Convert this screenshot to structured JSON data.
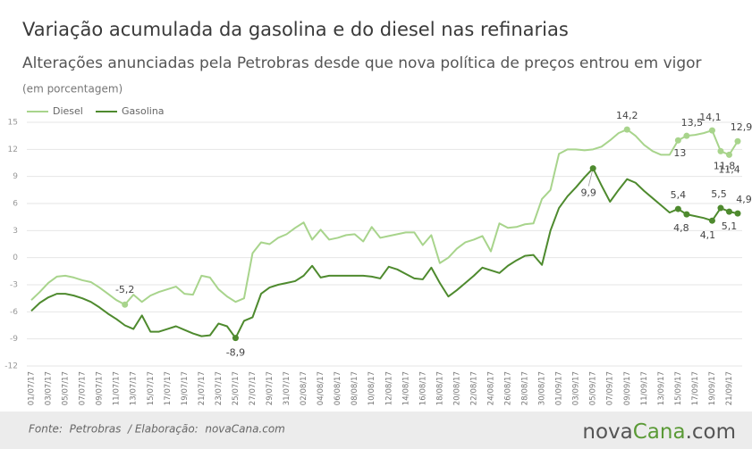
{
  "chart_data": {
    "type": "line",
    "title": "Variação acumulada da gasolina e do diesel nas refinarias",
    "subtitle": "Alterações anunciadas pela Petrobras desde que nova política de preços entrou em vigor",
    "unit_note": "(em porcentagem)",
    "categories": [
      "01/07/17",
      null,
      "03/07/17",
      null,
      "05/07/17",
      null,
      "07/07/17",
      null,
      "09/07/17",
      null,
      "11/07/17",
      null,
      "13/07/17",
      null,
      "15/07/17",
      null,
      "17/07/17",
      null,
      "19/07/17",
      null,
      "21/07/17",
      null,
      "23/07/17",
      null,
      "25/07/17",
      null,
      "27/07/17",
      null,
      "29/07/17",
      null,
      "31/07/17",
      null,
      "02/08/17",
      null,
      "04/08/17",
      null,
      "06/08/17",
      null,
      "08/08/17",
      null,
      "10/08/17",
      null,
      "12/08/17",
      null,
      "14/08/17",
      null,
      "16/08/17",
      null,
      "18/08/17",
      null,
      "20/08/17",
      null,
      "22/08/17",
      null,
      "24/08/17",
      null,
      "26/08/17",
      null,
      "28/08/17",
      null,
      "30/08/17",
      null,
      "01/09/17",
      null,
      "03/09/17",
      null,
      "05/09/17",
      null,
      "07/09/17",
      null,
      "09/09/17",
      null,
      "11/09/17",
      null,
      "13/09/17",
      null,
      "15/09/17",
      null,
      "17/09/17",
      null,
      "19/09/17",
      null,
      "21/09/17",
      null
    ],
    "series": [
      {
        "name": "Diesel",
        "color": "#a8d48c",
        "values": [
          -4.7,
          -3.8,
          -2.8,
          -2.1,
          -2.0,
          -2.2,
          -2.5,
          -2.7,
          -3.3,
          -4.0,
          -4.7,
          -5.2,
          -4.1,
          -4.9,
          -4.2,
          -3.8,
          -3.5,
          -3.2,
          -4.0,
          -4.1,
          -2.0,
          -2.2,
          -3.5,
          -4.3,
          -4.9,
          -4.5,
          0.5,
          1.7,
          1.5,
          2.2,
          2.6,
          3.3,
          3.9,
          2.0,
          3.1,
          2.0,
          2.2,
          2.5,
          2.6,
          1.8,
          3.4,
          2.2,
          2.4,
          2.6,
          2.8,
          2.8,
          1.4,
          2.5,
          -0.6,
          0.0,
          1.0,
          1.7,
          2.0,
          2.4,
          0.7,
          3.8,
          3.3,
          3.4,
          3.7,
          3.8,
          6.5,
          7.5,
          11.5,
          12.0,
          12.0,
          11.9,
          12.0,
          12.3,
          13.0,
          13.8,
          14.2,
          13.5,
          12.5,
          11.8,
          11.4,
          11.4,
          13,
          13.5,
          13.6,
          13.8,
          14.1,
          11.8,
          11.4,
          12.9
        ],
        "value_labels": [
          null,
          null,
          null,
          null,
          null,
          null,
          null,
          null,
          null,
          null,
          null,
          "-5,2",
          null,
          null,
          null,
          null,
          null,
          null,
          null,
          null,
          null,
          null,
          null,
          null,
          null,
          null,
          null,
          null,
          null,
          null,
          null,
          null,
          null,
          null,
          null,
          null,
          null,
          null,
          null,
          null,
          null,
          null,
          null,
          null,
          null,
          null,
          null,
          null,
          null,
          null,
          null,
          null,
          null,
          null,
          null,
          null,
          null,
          null,
          null,
          null,
          null,
          null,
          null,
          null,
          null,
          null,
          null,
          null,
          null,
          null,
          "14,2",
          null,
          null,
          null,
          null,
          null,
          "13",
          "13,5",
          null,
          null,
          "14,1",
          "11,8",
          "11,4",
          "12,9"
        ]
      },
      {
        "name": "Gasolina",
        "color": "#4e8a2e",
        "values": [
          -5.9,
          -5.0,
          -4.4,
          -4.0,
          -4.0,
          -4.2,
          -4.5,
          -4.9,
          -5.5,
          -6.2,
          -6.8,
          -7.5,
          -7.9,
          -6.4,
          -8.2,
          -8.2,
          -7.9,
          -7.6,
          -8.0,
          -8.4,
          -8.7,
          -8.6,
          -7.3,
          -7.6,
          -8.9,
          -7.0,
          -6.6,
          -4.0,
          -3.3,
          -3.0,
          -2.8,
          -2.6,
          -2.0,
          -0.9,
          -2.2,
          -2.0,
          -2.0,
          -2.0,
          -2.0,
          -2.0,
          -2.1,
          -2.3,
          -1.0,
          -1.3,
          -1.8,
          -2.3,
          -2.4,
          -1.1,
          -2.8,
          -4.3,
          -3.6,
          -2.8,
          -2.0,
          -1.1,
          -1.4,
          -1.7,
          -0.9,
          -0.3,
          0.2,
          0.3,
          -0.8,
          3.0,
          5.5,
          6.8,
          7.8,
          8.9,
          9.9,
          8.0,
          6.2,
          7.5,
          8.7,
          8.3,
          7.4,
          6.6,
          5.8,
          5.0,
          5.4,
          4.8,
          4.6,
          4.4,
          4.1,
          5.5,
          5.1,
          4.9
        ],
        "value_labels": [
          null,
          null,
          null,
          null,
          null,
          null,
          null,
          null,
          null,
          null,
          null,
          null,
          null,
          null,
          null,
          null,
          null,
          null,
          null,
          null,
          null,
          null,
          null,
          null,
          "-8,9",
          null,
          null,
          null,
          null,
          null,
          null,
          null,
          null,
          null,
          null,
          null,
          null,
          null,
          null,
          null,
          null,
          null,
          null,
          null,
          null,
          null,
          null,
          null,
          null,
          null,
          null,
          null,
          null,
          null,
          null,
          null,
          null,
          null,
          null,
          null,
          null,
          null,
          null,
          null,
          null,
          null,
          "9,9",
          null,
          null,
          null,
          null,
          null,
          null,
          null,
          null,
          null,
          "5,4",
          "4,8",
          null,
          null,
          "4,1",
          "5,5",
          "5,1",
          "4,9"
        ]
      }
    ],
    "ylim": [
      -12,
      15
    ],
    "yticks": [
      -12,
      -9,
      -6,
      -3,
      0,
      3,
      6,
      9,
      12,
      15
    ],
    "grid": true,
    "legend": "top-left"
  },
  "source": "Fonte:  Petrobras  / Elaboração:  novaCana.com",
  "logo": {
    "part1": "nova",
    "part2": "Cana",
    "part3": ".com"
  }
}
